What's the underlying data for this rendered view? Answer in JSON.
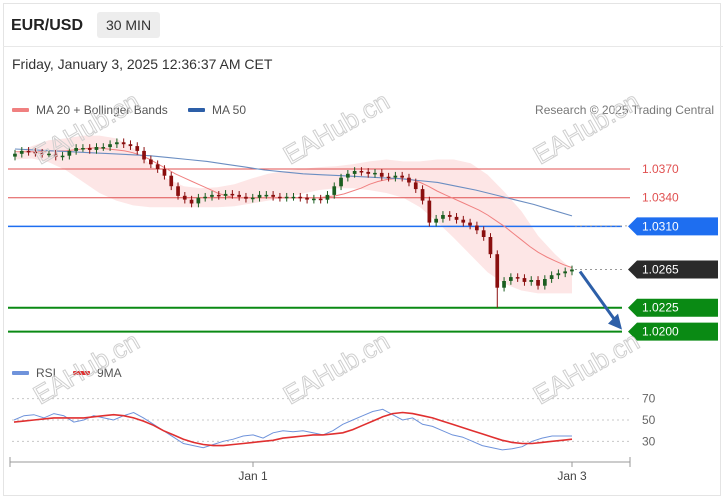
{
  "header": {
    "pair": "EUR/USD",
    "timeframe": "30 MIN",
    "datetime": "Friday, January 3, 2025 12:36:37 AM CET"
  },
  "legend": {
    "ma20": "MA 20 + Bollinger Bands",
    "ma50": "MA 50",
    "credit": "Research © 2025 Trading Central"
  },
  "rsi_legend": {
    "rsi": "RSI",
    "ma": "9MA"
  },
  "watermark": "EAHub.cn",
  "colors": {
    "bull": "#8a0f0f",
    "bear": "#1b5e20",
    "ma20": "#f08080",
    "ma50": "#6b8ec2",
    "band": "#fde0e0",
    "resistance": "#e05050",
    "pivot": "#1e6ef0",
    "support": "#0a8a14",
    "last": "#2a2a2a",
    "arrow": "#2d5fa8",
    "rsi": "#6f93db",
    "rsi_ma": "#e03030"
  },
  "chart_data": [
    {
      "type": "line",
      "title": "EUR/USD 30 MIN",
      "x_axis_labels": [
        "Jan 1",
        "Jan 3"
      ],
      "ylim": [
        1.0185,
        1.0415
      ],
      "price_levels": [
        {
          "value": 1.037,
          "label": "1.0370",
          "kind": "resistance"
        },
        {
          "value": 1.034,
          "label": "1.0340",
          "kind": "resistance"
        },
        {
          "value": 1.031,
          "label": "1.0310",
          "kind": "pivot"
        },
        {
          "value": 1.0265,
          "label": "1.0265",
          "kind": "last"
        },
        {
          "value": 1.0225,
          "label": "1.0225",
          "kind": "support"
        },
        {
          "value": 1.02,
          "label": "1.0200",
          "kind": "support"
        }
      ],
      "close": [
        1.0386,
        1.0389,
        1.0388,
        1.0387,
        1.0386,
        1.0386,
        1.0383,
        1.0384,
        1.0389,
        1.0392,
        1.0392,
        1.039,
        1.0393,
        1.0393,
        1.0396,
        1.0398,
        1.0396,
        1.0394,
        1.0389,
        1.038,
        1.0375,
        1.037,
        1.0363,
        1.0352,
        1.0342,
        1.0338,
        1.0334,
        1.034,
        1.0341,
        1.0343,
        1.0342,
        1.0344,
        1.0343,
        1.0341,
        1.0339,
        1.034,
        1.0343,
        1.0343,
        1.0341,
        1.034,
        1.0341,
        1.0341,
        1.034,
        1.0338,
        1.0339,
        1.0338,
        1.0343,
        1.0352,
        1.0361,
        1.0365,
        1.0368,
        1.0367,
        1.0365,
        1.0366,
        1.0362,
        1.0361,
        1.0363,
        1.0361,
        1.0356,
        1.0349,
        1.0337,
        1.0314,
        1.0318,
        1.0322,
        1.032,
        1.0317,
        1.0314,
        1.0311,
        1.0306,
        1.0299,
        1.0281,
        1.0246,
        1.0253,
        1.0257,
        1.0256,
        1.0252,
        1.0254,
        1.0248,
        1.0255,
        1.0259,
        1.0261,
        1.0263,
        1.0265
      ],
      "ma20": [
        1.0388,
        1.0388,
        1.0388,
        1.0388,
        1.0389,
        1.0389,
        1.0389,
        1.039,
        1.0391,
        1.0392,
        1.0392,
        1.0391,
        1.039,
        1.0389,
        1.0387,
        1.0384,
        1.038,
        1.0375,
        1.037,
        1.0365,
        1.0361,
        1.0357,
        1.0353,
        1.0349,
        1.0345,
        1.0342,
        1.034,
        1.034,
        1.034,
        1.034,
        1.034,
        1.034,
        1.034,
        1.034,
        1.034,
        1.034,
        1.034,
        1.0341,
        1.0342,
        1.0344,
        1.0347,
        1.035,
        1.0354,
        1.0357,
        1.0359,
        1.036,
        1.036,
        1.0359,
        1.0356,
        1.0352,
        1.0347,
        1.0343,
        1.0339,
        1.0335,
        1.0331,
        1.0327,
        1.0322,
        1.0316,
        1.031,
        1.0303,
        1.0296,
        1.0289,
        1.0283,
        1.0278,
        1.0274,
        1.027,
        1.0267
      ],
      "ma50": [
        1.0391,
        1.039,
        1.0389,
        1.0388,
        1.0387,
        1.0386,
        1.0385,
        1.0384,
        1.0382,
        1.038,
        1.0378,
        1.0375,
        1.0372,
        1.0369,
        1.0367,
        1.0365,
        1.0364,
        1.0363,
        1.0362,
        1.0361,
        1.036,
        1.0358,
        1.0356,
        1.0352,
        1.0348,
        1.0343,
        1.0338,
        1.0333,
        1.0327,
        1.0321
      ],
      "bb_upper": [
        1.0386,
        1.0394,
        1.04,
        1.0402,
        1.0405,
        1.0405,
        1.0402,
        1.0392,
        1.0375,
        1.036,
        1.0352,
        1.035,
        1.0351,
        1.0354,
        1.036,
        1.0365,
        1.0368,
        1.037,
        1.0372,
        1.0373,
        1.0375,
        1.0378,
        1.038,
        1.0378,
        1.0378,
        1.038,
        1.038,
        1.0376,
        1.0364,
        1.0346,
        1.0326,
        1.03,
        1.0281,
        1.0265
      ],
      "bb_lower": [
        1.038,
        1.0381,
        1.0377,
        1.0369,
        1.0357,
        1.0345,
        1.0337,
        1.0332,
        1.033,
        1.033,
        1.033,
        1.033,
        1.033,
        1.0331,
        1.0334,
        1.0337,
        1.034,
        1.0344,
        1.0348,
        1.035,
        1.035,
        1.0348,
        1.0345,
        1.034,
        1.033,
        1.0315,
        1.0298,
        1.028,
        1.0262,
        1.025,
        1.0243,
        1.024,
        1.024,
        1.024
      ],
      "projection": {
        "from": 1.0265,
        "to": 1.02
      }
    },
    {
      "type": "line",
      "title": "RSI",
      "ylim": [
        20,
        80
      ],
      "yticks": [
        70,
        50,
        30
      ],
      "series": [
        {
          "name": "RSI",
          "values": [
            50,
            54,
            55,
            52,
            56,
            54,
            48,
            50,
            54,
            52,
            50,
            54,
            57,
            52,
            46,
            40,
            34,
            28,
            26,
            24,
            27,
            30,
            32,
            35,
            36,
            33,
            38,
            40,
            39,
            40,
            38,
            36,
            40,
            46,
            50,
            54,
            58,
            60,
            55,
            50,
            52,
            46,
            44,
            40,
            36,
            34,
            30,
            26,
            24,
            22,
            23,
            25,
            30,
            33,
            35,
            35,
            35
          ]
        },
        {
          "name": "9MA",
          "values": [
            48,
            49,
            50,
            51,
            52,
            52,
            52,
            52,
            53,
            54,
            55,
            54,
            52,
            49,
            45,
            40,
            36,
            32,
            29,
            27,
            26,
            26,
            27,
            28,
            29,
            30,
            31,
            33,
            34,
            35,
            36,
            36,
            37,
            38,
            41,
            45,
            49,
            53,
            56,
            57,
            56,
            54,
            52,
            49,
            46,
            43,
            40,
            37,
            34,
            31,
            29,
            28,
            28,
            29,
            30,
            31,
            32
          ]
        }
      ]
    }
  ]
}
